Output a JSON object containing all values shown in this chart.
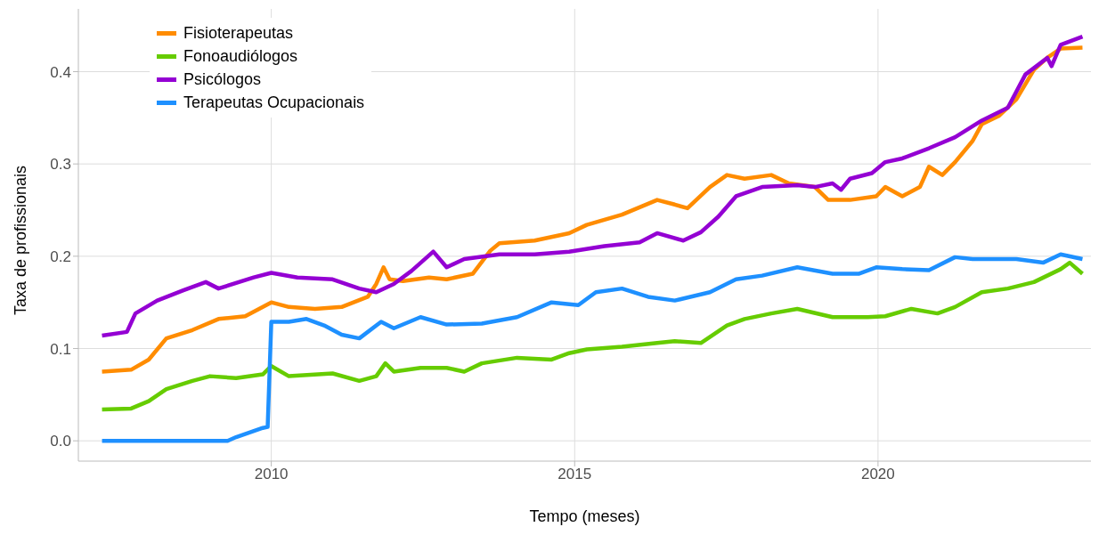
{
  "chart_data": {
    "type": "line",
    "xlabel": "Tempo (meses)",
    "ylabel": "Taxa de profissionais",
    "xlim": [
      2006.82,
      2023.51
    ],
    "xticks": [
      2010,
      2015,
      2020
    ],
    "ylim": [
      -0.022,
      0.468
    ],
    "yticks": [
      {
        "value": 0,
        "label": "0.0"
      },
      0.1,
      0.2,
      0.3,
      0.4
    ],
    "grid": true,
    "legend": "top left",
    "line_style": "solid",
    "marker": "none",
    "series": [
      {
        "name": "Fisioterapeutas",
        "color": "#ff8c00",
        "x": [
          2007.21,
          2007.69,
          2007.98,
          2008.27,
          2008.7,
          2009.13,
          2009.57,
          2010,
          2010.29,
          2010.72,
          2011.16,
          2011.59,
          2011.73,
          2011.85,
          2011.95,
          2012.17,
          2012.6,
          2012.89,
          2013.32,
          2013.61,
          2013.76,
          2014.34,
          2014.91,
          2015.2,
          2015.78,
          2016.36,
          2016.65,
          2016.86,
          2017.23,
          2017.51,
          2017.8,
          2018.24,
          2018.53,
          2018.96,
          2019.18,
          2019.54,
          2019.97,
          2020.12,
          2020.4,
          2020.69,
          2020.84,
          2021.06,
          2021.27,
          2021.56,
          2021.71,
          2021.99,
          2022.28,
          2022.57,
          2022.79,
          2023.01,
          2023.37
        ],
        "values": [
          0.075,
          0.077,
          0.088,
          0.111,
          0.12,
          0.132,
          0.135,
          0.15,
          0.145,
          0.143,
          0.145,
          0.156,
          0.17,
          0.188,
          0.175,
          0.173,
          0.177,
          0.175,
          0.181,
          0.206,
          0.214,
          0.217,
          0.225,
          0.234,
          0.245,
          0.261,
          0.256,
          0.252,
          0.275,
          0.288,
          0.284,
          0.288,
          0.279,
          0.275,
          0.261,
          0.261,
          0.265,
          0.275,
          0.265,
          0.275,
          0.297,
          0.288,
          0.302,
          0.325,
          0.343,
          0.352,
          0.37,
          0.402,
          0.415,
          0.425,
          0.426
        ]
      },
      {
        "name": "Fonoaudiólogos",
        "color": "#66cc00",
        "x": [
          2007.21,
          2007.69,
          2007.98,
          2008.27,
          2008.7,
          2008.99,
          2009.42,
          2009.86,
          2010,
          2010.29,
          2011.01,
          2011.45,
          2011.73,
          2011.88,
          2012.02,
          2012.46,
          2012.89,
          2013.18,
          2013.47,
          2014.05,
          2014.62,
          2014.91,
          2015.2,
          2015.78,
          2016.36,
          2016.65,
          2017.08,
          2017.51,
          2017.8,
          2018.24,
          2018.67,
          2019.25,
          2019.83,
          2020.12,
          2020.55,
          2020.98,
          2021.27,
          2021.71,
          2022.14,
          2022.57,
          2023.01,
          2023.16,
          2023.37
        ],
        "values": [
          0.034,
          0.035,
          0.043,
          0.056,
          0.065,
          0.07,
          0.068,
          0.072,
          0.081,
          0.07,
          0.073,
          0.065,
          0.07,
          0.084,
          0.075,
          0.079,
          0.079,
          0.075,
          0.084,
          0.09,
          0.088,
          0.095,
          0.099,
          0.102,
          0.106,
          0.108,
          0.106,
          0.125,
          0.132,
          0.138,
          0.143,
          0.134,
          0.134,
          0.135,
          0.143,
          0.138,
          0.145,
          0.161,
          0.165,
          0.172,
          0.186,
          0.193,
          0.181
        ]
      },
      {
        "name": "Psicólogos",
        "color": "#9400d3",
        "x": [
          2007.21,
          2007.62,
          2007.76,
          2008.12,
          2008.55,
          2008.92,
          2009.13,
          2009.71,
          2010,
          2010.43,
          2011.01,
          2011.45,
          2011.73,
          2012.02,
          2012.31,
          2012.67,
          2012.89,
          2013.18,
          2013.76,
          2014.34,
          2014.91,
          2015.49,
          2016.07,
          2016.36,
          2016.79,
          2017.08,
          2017.37,
          2017.66,
          2018.09,
          2018.67,
          2018.96,
          2019.25,
          2019.39,
          2019.54,
          2019.9,
          2020.12,
          2020.4,
          2020.84,
          2021.27,
          2021.71,
          2022.14,
          2022.43,
          2022.79,
          2022.86,
          2023.01,
          2023.37
        ],
        "values": [
          0.114,
          0.118,
          0.138,
          0.152,
          0.163,
          0.172,
          0.165,
          0.177,
          0.182,
          0.177,
          0.175,
          0.165,
          0.161,
          0.17,
          0.184,
          0.205,
          0.188,
          0.197,
          0.202,
          0.202,
          0.205,
          0.211,
          0.215,
          0.225,
          0.217,
          0.226,
          0.243,
          0.265,
          0.275,
          0.277,
          0.275,
          0.279,
          0.272,
          0.284,
          0.29,
          0.302,
          0.306,
          0.317,
          0.329,
          0.347,
          0.361,
          0.397,
          0.415,
          0.406,
          0.429,
          0.438
        ]
      },
      {
        "name": "Terapeutas Ocupacionais",
        "color": "#1e90ff",
        "x": [
          2007.21,
          2009.28,
          2009.42,
          2009.86,
          2009.94,
          2010,
          2010.29,
          2010.58,
          2010.87,
          2011.16,
          2011.45,
          2011.81,
          2012.02,
          2012.46,
          2012.89,
          2013.47,
          2014.05,
          2014.62,
          2015.06,
          2015.35,
          2015.78,
          2016.21,
          2016.65,
          2017.23,
          2017.66,
          2018.09,
          2018.67,
          2019.25,
          2019.68,
          2019.97,
          2020.4,
          2020.84,
          2021.27,
          2021.56,
          2022.28,
          2022.72,
          2023.01,
          2023.37
        ],
        "values": [
          0,
          0,
          0.004,
          0.014,
          0.015,
          0.129,
          0.129,
          0.132,
          0.125,
          0.115,
          0.111,
          0.129,
          0.122,
          0.134,
          0.126,
          0.127,
          0.134,
          0.15,
          0.147,
          0.161,
          0.165,
          0.156,
          0.152,
          0.161,
          0.175,
          0.179,
          0.188,
          0.181,
          0.181,
          0.188,
          0.186,
          0.185,
          0.199,
          0.197,
          0.197,
          0.193,
          0.202,
          0.197
        ]
      }
    ]
  }
}
